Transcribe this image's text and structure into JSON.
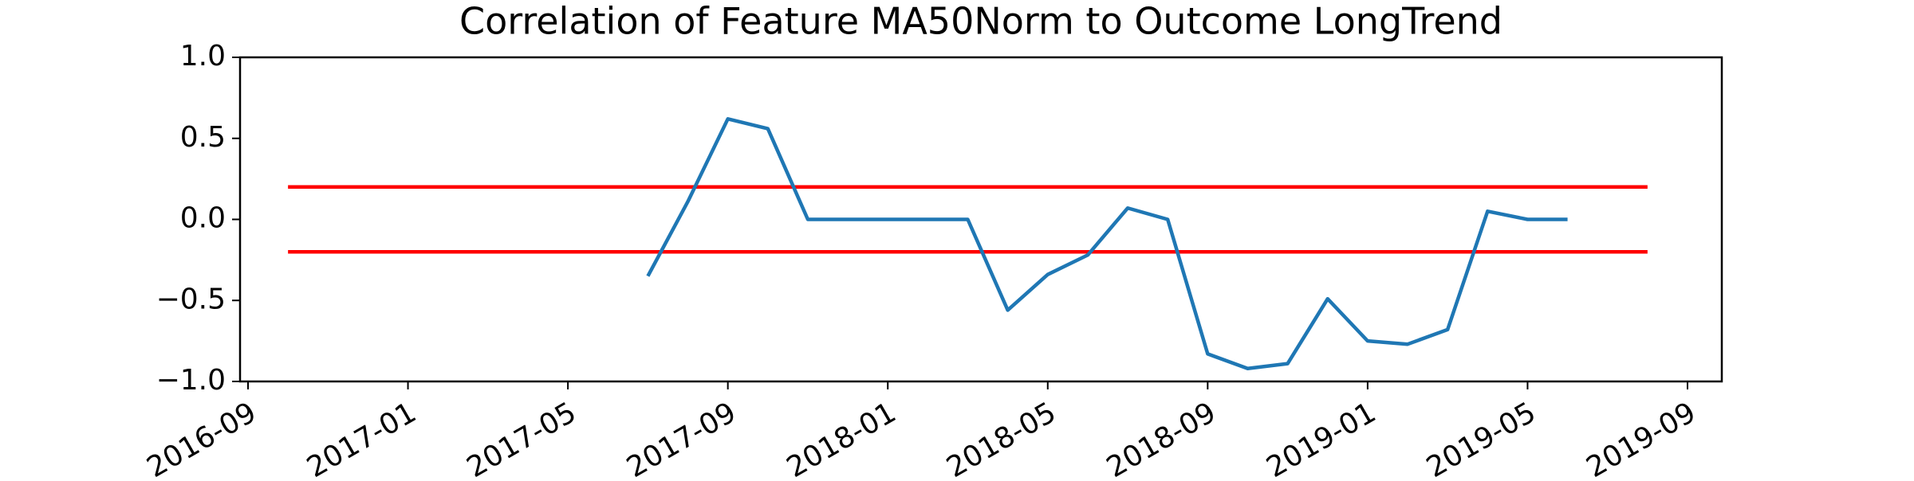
{
  "chart_data": {
    "type": "line",
    "title": "Correlation of Feature MA50Norm to Outcome LongTrend",
    "x": [
      "2017-07",
      "2017-08",
      "2017-09",
      "2017-10",
      "2017-11",
      "2017-12",
      "2018-01",
      "2018-02",
      "2018-03",
      "2018-04",
      "2018-05",
      "2018-06",
      "2018-07",
      "2018-08",
      "2018-09",
      "2018-10",
      "2018-11",
      "2018-12",
      "2019-01",
      "2019-02",
      "2019-03",
      "2019-04",
      "2019-05",
      "2019-06"
    ],
    "series": [
      {
        "color": "#1f77b4",
        "values": [
          -0.35,
          0.11,
          0.62,
          0.56,
          0,
          0,
          0,
          0,
          0,
          -0.56,
          -0.34,
          -0.22,
          0.07,
          0,
          -0.83,
          -0.92,
          -0.89,
          -0.49,
          -0.75,
          -0.77,
          -0.68,
          0.05,
          0,
          0
        ]
      }
    ],
    "reference_lines": [
      {
        "color": "#ff0000",
        "x": [
          "2016-10",
          "2019-08"
        ],
        "values": [
          0.2,
          0.2
        ]
      },
      {
        "color": "#ff0000",
        "x": [
          "2016-10",
          "2019-08"
        ],
        "values": [
          -0.2,
          -0.2
        ]
      }
    ],
    "xlim": [
      "2016-09",
      "2019-09"
    ],
    "xticks": [
      "2016-09",
      "2017-01",
      "2017-05",
      "2017-09",
      "2018-01",
      "2018-05",
      "2018-09",
      "2019-01",
      "2019-05",
      "2019-09"
    ],
    "ylim": [
      -1,
      1
    ],
    "yticks": [
      {
        "value": -1,
        "label": "−1.0"
      },
      {
        "value": -0.5,
        "label": "−0.5"
      },
      {
        "value": 0,
        "label": "0.0"
      },
      0.5,
      {
        "value": 1,
        "label": "1.0"
      }
    ],
    "grid": false
  }
}
